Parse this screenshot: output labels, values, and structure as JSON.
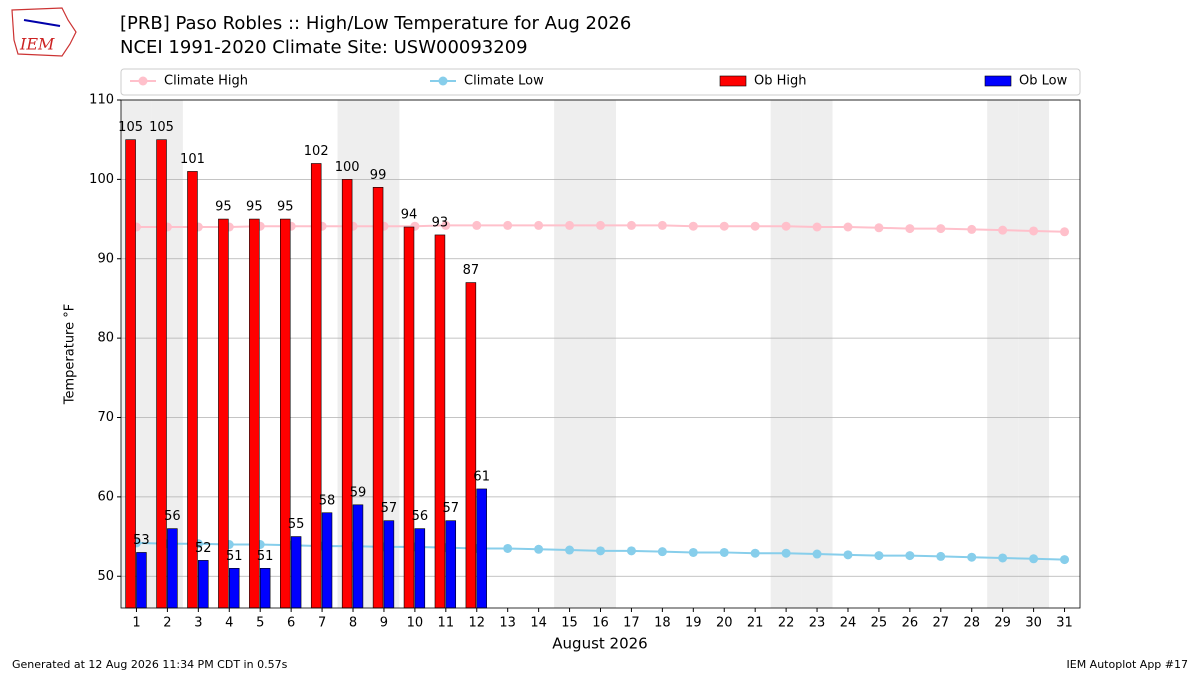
{
  "logo_text": "IEM",
  "footer_left": "Generated at 12 Aug 2026 11:34 PM CDT in 0.57s",
  "footer_right": "IEM Autoplot App #17",
  "chart_data": {
    "type": "bar",
    "title": "[PRB] Paso Robles :: High/Low Temperature for Aug 2026",
    "subtitle": "NCEI 1991-2020 Climate Site: USW00093209",
    "x_label": "August 2026",
    "y_label": "Temperature °F",
    "x": [
      1,
      2,
      3,
      4,
      5,
      6,
      7,
      8,
      9,
      10,
      11,
      12,
      13,
      14,
      15,
      16,
      17,
      18,
      19,
      20,
      21,
      22,
      23,
      24,
      25,
      26,
      27,
      28,
      29,
      30,
      31
    ],
    "xlim": [
      0.5,
      31.5
    ],
    "xticks": [
      1,
      2,
      3,
      4,
      5,
      6,
      7,
      8,
      9,
      10,
      11,
      12,
      13,
      14,
      15,
      16,
      17,
      18,
      19,
      20,
      21,
      22,
      23,
      24,
      25,
      26,
      27,
      28,
      29,
      30,
      31
    ],
    "ylim": [
      46,
      110
    ],
    "yticks": [
      50,
      60,
      70,
      80,
      90,
      100,
      110
    ],
    "grid": true,
    "shaded_days": [
      1,
      2,
      8,
      9,
      15,
      16,
      22,
      23,
      29,
      30
    ],
    "series": [
      {
        "name": "Climate High",
        "type": "line",
        "color": "#ffc0cb",
        "values": [
          94.0,
          94.0,
          94.0,
          94.0,
          94.1,
          94.1,
          94.1,
          94.1,
          94.1,
          94.1,
          94.2,
          94.2,
          94.2,
          94.2,
          94.2,
          94.2,
          94.2,
          94.2,
          94.1,
          94.1,
          94.1,
          94.1,
          94.0,
          94.0,
          93.9,
          93.8,
          93.8,
          93.7,
          93.6,
          93.5,
          93.4
        ]
      },
      {
        "name": "Climate Low",
        "type": "line",
        "color": "#87ceeb",
        "values": [
          54.2,
          54.1,
          54.1,
          54.0,
          54.0,
          53.9,
          53.8,
          53.8,
          53.7,
          53.7,
          53.6,
          53.5,
          53.5,
          53.4,
          53.3,
          53.2,
          53.2,
          53.1,
          53.0,
          53.0,
          52.9,
          52.9,
          52.8,
          52.7,
          52.6,
          52.6,
          52.5,
          52.4,
          52.3,
          52.2,
          52.1
        ]
      },
      {
        "name": "Ob High",
        "type": "bar",
        "color": "#ff0000",
        "values": [
          105,
          105,
          101,
          95,
          95,
          95,
          102,
          100,
          99,
          94,
          93,
          87,
          null,
          null,
          null,
          null,
          null,
          null,
          null,
          null,
          null,
          null,
          null,
          null,
          null,
          null,
          null,
          null,
          null,
          null,
          null
        ]
      },
      {
        "name": "Ob Low",
        "type": "bar",
        "color": "#0000ff",
        "values": [
          53,
          56,
          52,
          51,
          51,
          55,
          58,
          59,
          57,
          56,
          57,
          61,
          null,
          null,
          null,
          null,
          null,
          null,
          null,
          null,
          null,
          null,
          null,
          null,
          null,
          null,
          null,
          null,
          null,
          null,
          null
        ]
      }
    ]
  }
}
